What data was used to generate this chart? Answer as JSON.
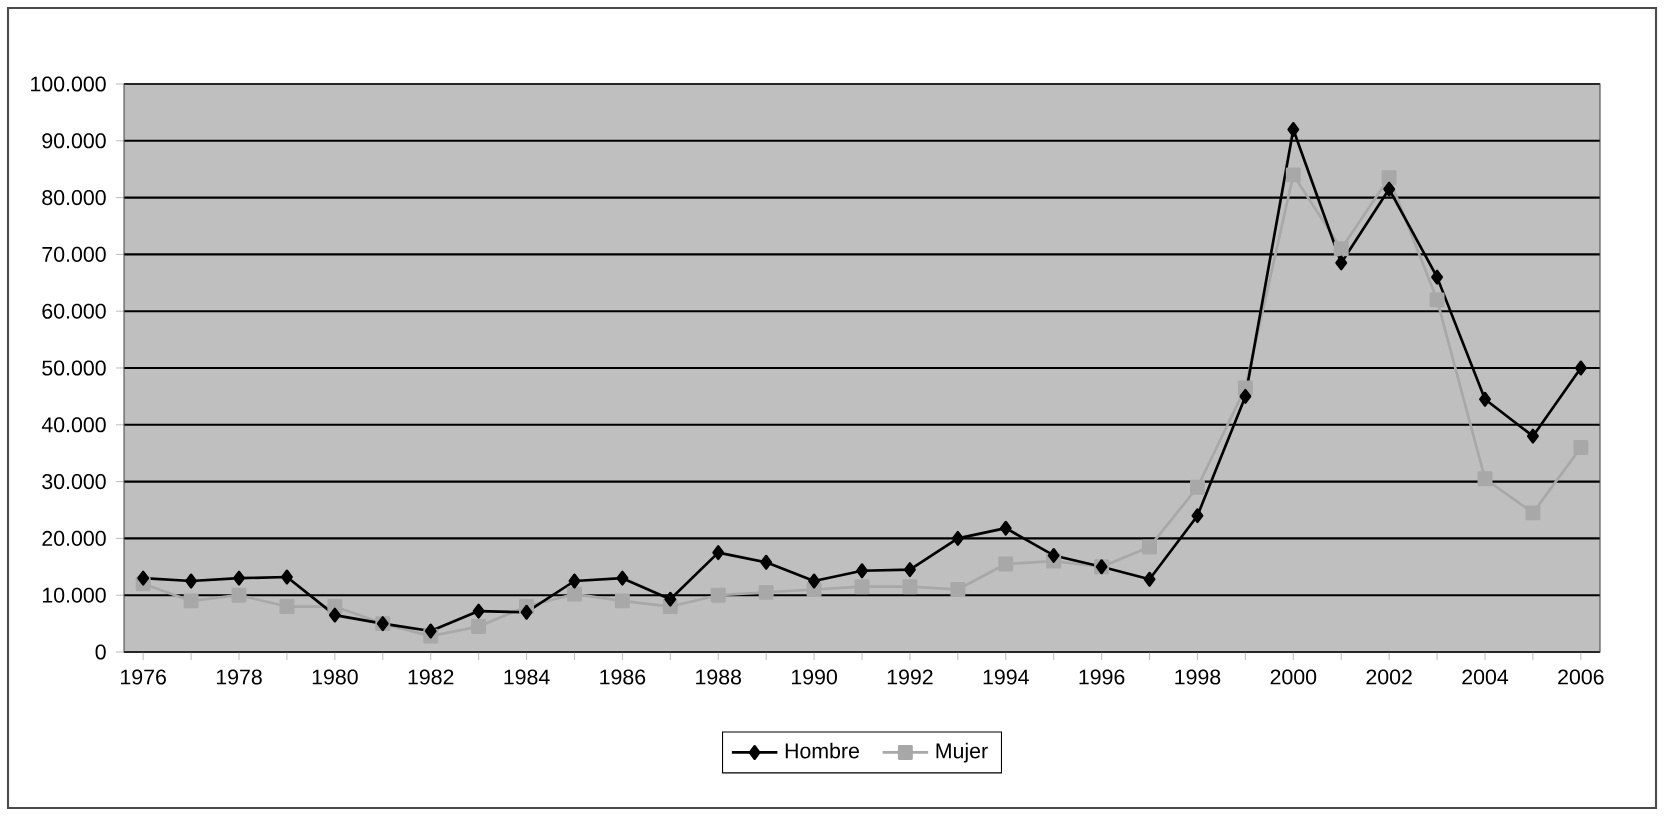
{
  "chart_data": {
    "type": "line",
    "x": [
      1976,
      1977,
      1978,
      1979,
      1980,
      1981,
      1982,
      1983,
      1984,
      1985,
      1986,
      1987,
      1988,
      1989,
      1990,
      1991,
      1992,
      1993,
      1994,
      1995,
      1996,
      1997,
      1998,
      1999,
      2000,
      2001,
      2002,
      2003,
      2004,
      2005,
      2006
    ],
    "series": [
      {
        "name": "Hombre",
        "color": "#000000",
        "marker": "diamond",
        "values": [
          13000,
          12500,
          13000,
          13200,
          6500,
          5000,
          3700,
          7200,
          7000,
          12500,
          13000,
          9300,
          17500,
          15800,
          12500,
          14300,
          14500,
          20000,
          21800,
          17000,
          15000,
          12800,
          24000,
          45000,
          92000,
          68500,
          81500,
          66000,
          44500,
          38000,
          50000
        ]
      },
      {
        "name": "Mujer",
        "color": "#a8a8a8",
        "marker": "square",
        "values": [
          12000,
          9000,
          10000,
          8000,
          8000,
          5000,
          2800,
          4500,
          8000,
          10200,
          9000,
          8000,
          10000,
          10500,
          11000,
          11500,
          11500,
          11000,
          15500,
          16000,
          15000,
          18500,
          29000,
          46500,
          84000,
          71000,
          83500,
          62000,
          30500,
          24500,
          36000
        ]
      }
    ],
    "xlim": [
      1975.6,
      2006.4
    ],
    "xticks": [
      1976,
      1978,
      1980,
      1982,
      1984,
      1986,
      1988,
      1990,
      1992,
      1994,
      1996,
      1998,
      2000,
      2002,
      2004,
      2006
    ],
    "ylim": [
      0,
      100000
    ],
    "yticks": [
      0,
      {
        "value": 10000,
        "label": "10.000"
      },
      {
        "value": 20000,
        "label": "20.000"
      },
      {
        "value": 30000,
        "label": "30.000"
      },
      {
        "value": 40000,
        "label": "40.000"
      },
      {
        "value": 50000,
        "label": "50.000"
      },
      {
        "value": 60000,
        "label": "60.000"
      },
      {
        "value": 70000,
        "label": "70.000"
      },
      {
        "value": 80000,
        "label": "80.000"
      },
      {
        "value": 90000,
        "label": "90.000"
      },
      {
        "value": 100000,
        "label": "100.000"
      }
    ],
    "grid": "y",
    "legend": "bottom",
    "line_style": "solid"
  }
}
